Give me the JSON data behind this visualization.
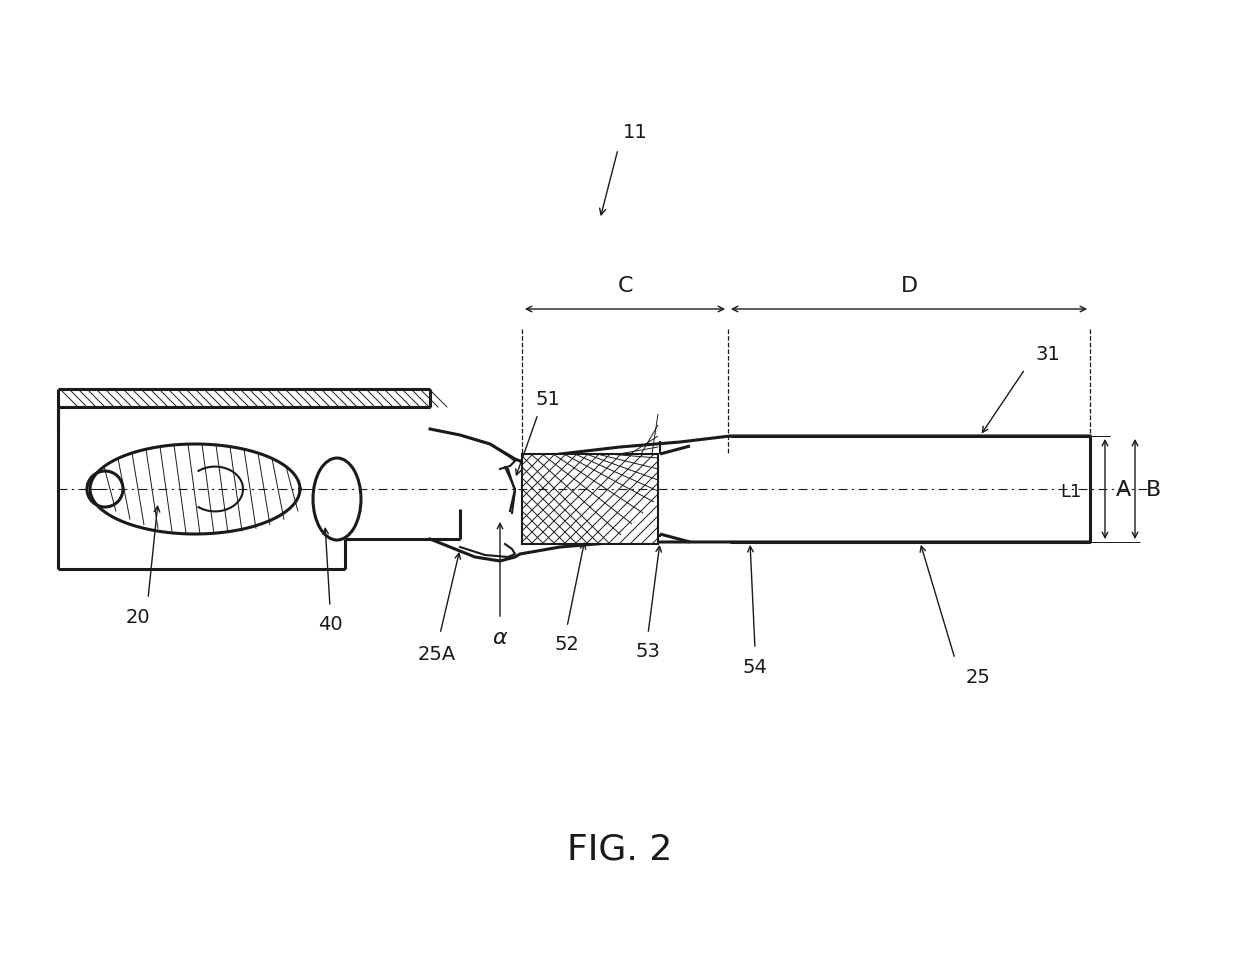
{
  "bg_color": "#ffffff",
  "line_color": "#1a1a1a",
  "label_11": "11",
  "label_20": "20",
  "label_25": "25",
  "label_25A": "25A",
  "label_31": "31",
  "label_40": "40",
  "label_51": "51",
  "label_52": "52",
  "label_53": "53",
  "label_54": "54",
  "label_alpha": "α",
  "label_A": "A",
  "label_B": "B",
  "label_C": "C",
  "label_D": "D",
  "label_L1": "L1",
  "fig_label": "FIG. 2",
  "font_size_labels": 14,
  "font_size_title": 26
}
